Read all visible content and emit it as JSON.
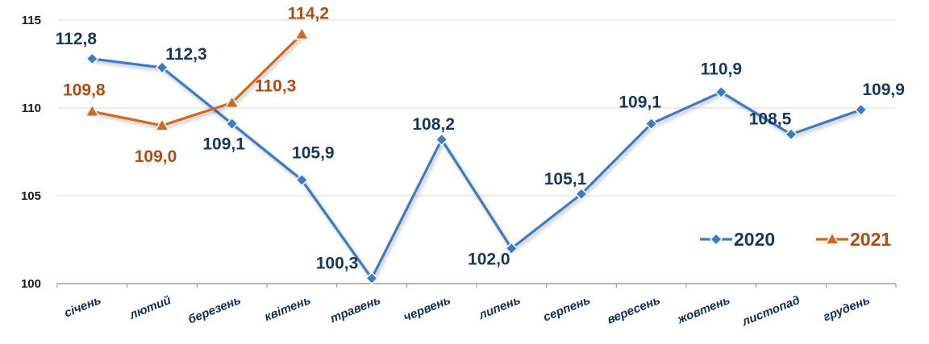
{
  "chart_data": {
    "type": "line",
    "categories": [
      "січень",
      "лютий",
      "березень",
      "квітень",
      "травень",
      "червень",
      "липень",
      "серпень",
      "вересень",
      "жовтень",
      "листопад",
      "грудень"
    ],
    "series": [
      {
        "name": "2020",
        "values": [
          112.8,
          112.3,
          109.1,
          105.9,
          100.3,
          108.2,
          102.0,
          105.1,
          109.1,
          110.9,
          108.5,
          109.9
        ],
        "labels": [
          "112,8",
          "112,3",
          "109,1",
          "105,9",
          "100,3",
          "108,2",
          "102,0",
          "105,1",
          "109,1",
          "110,9",
          "108,5",
          "109,9"
        ],
        "color": "#3a7bc8",
        "label_color": "#17375e",
        "marker": "diamond"
      },
      {
        "name": "2021",
        "values": [
          109.8,
          109.0,
          110.3,
          114.2,
          null,
          null,
          null,
          null,
          null,
          null,
          null,
          null
        ],
        "labels": [
          "109,8",
          "109,0",
          "110,3",
          "114,2",
          null,
          null,
          null,
          null,
          null,
          null,
          null,
          null
        ],
        "color": "#d2691e",
        "label_color": "#b04a10",
        "marker": "triangle"
      }
    ],
    "y_ticks": [
      "100",
      "105",
      "110",
      "115"
    ],
    "ylim": [
      100,
      115
    ],
    "grid": true,
    "legend": "bottom-right",
    "title": "",
    "xlabel": "",
    "ylabel": ""
  }
}
